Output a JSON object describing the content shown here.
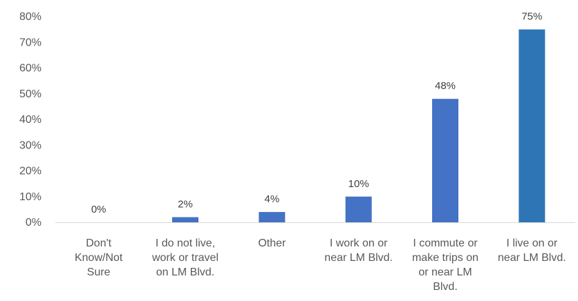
{
  "chart_data": {
    "type": "bar",
    "categories": [
      [
        "Don't",
        "Know/Not",
        "Sure"
      ],
      [
        "I do not live,",
        "work or travel",
        "on LM Blvd."
      ],
      [
        "Other"
      ],
      [
        "I work on or",
        "near LM Blvd."
      ],
      [
        "I commute or",
        "make trips on",
        "or near LM",
        "Blvd."
      ],
      [
        "I live on or",
        "near LM Blvd."
      ]
    ],
    "values": [
      0,
      2,
      4,
      10,
      48,
      75
    ],
    "value_labels": [
      "0%",
      "2%",
      "4%",
      "10%",
      "48%",
      "75%"
    ],
    "y_ticks": [
      0,
      10,
      20,
      30,
      40,
      50,
      60,
      70,
      80
    ],
    "y_tick_labels": [
      "0%",
      "10%",
      "20%",
      "30%",
      "40%",
      "50%",
      "60%",
      "70%",
      "80%"
    ],
    "ylim": [
      0,
      80
    ],
    "grid": false,
    "legend": "none",
    "title": "",
    "xlabel": "",
    "ylabel": "",
    "colors": [
      "#4472c4",
      "#4472c4",
      "#4472c4",
      "#4472c4",
      "#4472c4",
      "#2e75b6"
    ],
    "axis_color": "#d9d9d9"
  }
}
